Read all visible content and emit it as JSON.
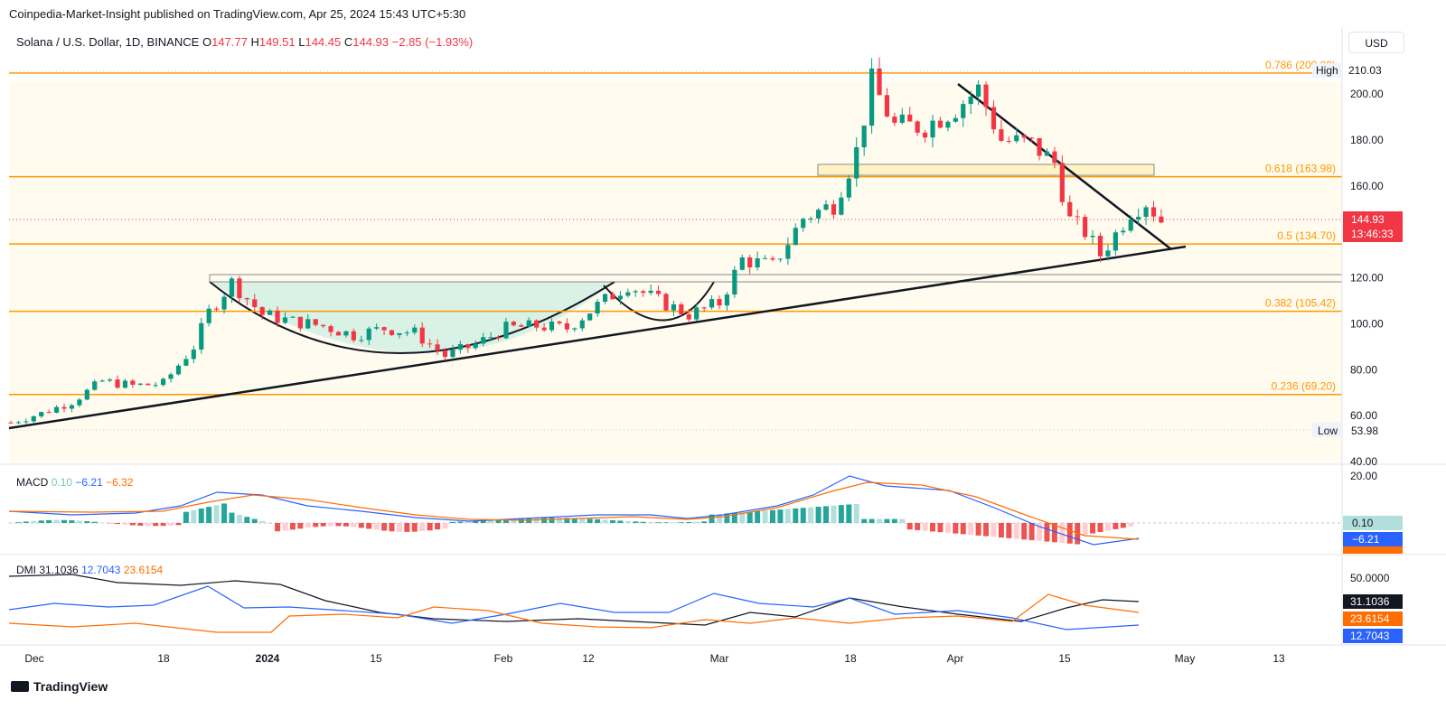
{
  "header": {
    "publisher": "Coinpedia-Market-Insight published on TradingView.com, Apr 25, 2024 15:43 UTC+5:30",
    "symbol": "Solana / U.S. Dollar, 1D, BINANCE",
    "open_label": "O",
    "open": "147.77",
    "high_label": "H",
    "high": "149.51",
    "low_label": "L",
    "low": "144.45",
    "close_label": "C",
    "close": "144.93",
    "change": "−2.85 (−1.93%)",
    "currency_button": "USD"
  },
  "price_axis": {
    "ticks": [
      "200.00",
      "180.00",
      "160.00",
      "140.00",
      "120.00",
      "100.00",
      "80.00",
      "60.00",
      "40.00"
    ],
    "high_label": "High",
    "high_value": "210.03",
    "low_label": "Low",
    "low_value": "53.98",
    "last_price": "144.93",
    "countdown": "13:46:33"
  },
  "fib_levels": [
    {
      "label": "0.786 (209.09)",
      "value": 209.09
    },
    {
      "label": "0.618 (163.98)",
      "value": 163.98
    },
    {
      "label": "0.5 (134.70)",
      "value": 134.7
    },
    {
      "label": "0.382 (105.42)",
      "value": 105.42
    },
    {
      "label": "0.236 (69.20)",
      "value": 69.2
    }
  ],
  "time_axis": {
    "labels": [
      "Dec",
      "18",
      "2024",
      "15",
      "Feb",
      "12",
      "Mar",
      "18",
      "Apr",
      "15",
      "May",
      "13"
    ]
  },
  "macd": {
    "title": "MACD",
    "hist_value": "0.10",
    "macd_value": "−6.21",
    "signal_value": "−6.32",
    "axis_top": "20.00",
    "badge_hist": "0.10",
    "badge_macd": "−6.21"
  },
  "dmi": {
    "title": "DMI",
    "adx_value": "31.1036",
    "plus_di_value": "12.7043",
    "minus_di_value": "23.6154",
    "axis_top": "50.0000",
    "badge_adx": "31.1036",
    "badge_minus": "23.6154",
    "badge_plus": "12.7043"
  },
  "colors": {
    "up": "#089981",
    "down": "#f23645",
    "fib": "#ff9800",
    "macd": "#2962ff",
    "signal": "#ff6d00",
    "adx": "#131722",
    "band": "#fffbef",
    "cup": "#daf0e6"
  },
  "logo": {
    "text": "TradingView"
  },
  "chart_data": {
    "type": "candlestick",
    "series_name": "Solana / U.S. Dollar, 1D, BINANCE",
    "x_range": [
      "2023-11-26",
      "2024-05-20"
    ],
    "ylim": [
      40,
      215
    ],
    "grid": false,
    "ohlc_close_path": [
      [
        "2023-11-26",
        57
      ],
      [
        "2023-11-30",
        61
      ],
      [
        "2023-12-04",
        66
      ],
      [
        "2023-12-08",
        75
      ],
      [
        "2023-12-12",
        73
      ],
      [
        "2023-12-16",
        74
      ],
      [
        "2023-12-20",
        90
      ],
      [
        "2023-12-22",
        105
      ],
      [
        "2023-12-25",
        118
      ],
      [
        "2023-12-29",
        104
      ],
      [
        "2024-01-02",
        101
      ],
      [
        "2024-01-06",
        99
      ],
      [
        "2024-01-10",
        95
      ],
      [
        "2024-01-14",
        98
      ],
      [
        "2024-01-18",
        96
      ],
      [
        "2024-01-22",
        86
      ],
      [
        "2024-01-26",
        91
      ],
      [
        "2024-01-30",
        98
      ],
      [
        "2024-02-03",
        99
      ],
      [
        "2024-02-07",
        98
      ],
      [
        "2024-02-11",
        108
      ],
      [
        "2024-02-15",
        117
      ],
      [
        "2024-02-19",
        110
      ],
      [
        "2024-02-23",
        104
      ],
      [
        "2024-02-27",
        109
      ],
      [
        "2024-03-01",
        128
      ],
      [
        "2024-03-05",
        125
      ],
      [
        "2024-03-09",
        146
      ],
      [
        "2024-03-13",
        152
      ],
      [
        "2024-03-16",
        175
      ],
      [
        "2024-03-18",
        205
      ],
      [
        "2024-03-21",
        186
      ],
      [
        "2024-03-25",
        186
      ],
      [
        "2024-03-29",
        194
      ],
      [
        "2024-04-01",
        202
      ],
      [
        "2024-04-04",
        180
      ],
      [
        "2024-04-08",
        178
      ],
      [
        "2024-04-11",
        170
      ],
      [
        "2024-04-13",
        145
      ],
      [
        "2024-04-15",
        140
      ],
      [
        "2024-04-17",
        130
      ],
      [
        "2024-04-19",
        139
      ],
      [
        "2024-04-21",
        149
      ],
      [
        "2024-04-23",
        153
      ],
      [
        "2024-04-25",
        144.93
      ]
    ],
    "annotations": [
      "cup and handle pattern",
      "ascending support trendline",
      "descending resistance trendline"
    ]
  }
}
